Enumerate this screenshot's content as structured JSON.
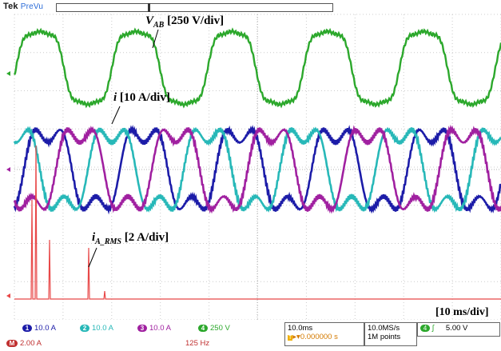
{
  "header": {
    "brand": "Tek",
    "mode": "PreVu"
  },
  "labels": {
    "vab_sym": "V",
    "vab_sub": "AB",
    "vab_scale": " [250 V/div]",
    "i_sym": "i",
    "i_scale": " [10 A/div]",
    "irms_sym": "i",
    "irms_sub": "A_RMS",
    "irms_scale": " [2 A/div]",
    "timebase": "[10 ms/div]"
  },
  "footer": {
    "ch1": {
      "num": "1",
      "value": "10.0 A"
    },
    "ch2": {
      "num": "2",
      "value": "10.0 A"
    },
    "ch3": {
      "num": "3",
      "value": "10.0 A"
    },
    "ch4": {
      "num": "4",
      "value": "250 V"
    },
    "math": {
      "num": "M",
      "value": "2.00 A",
      "freq": "125 Hz"
    },
    "horiz": {
      "scale": "10.0ms",
      "offset": "0.000000 s"
    },
    "acq": {
      "rate": "10.0MS/s",
      "points": "1M points"
    },
    "trig": {
      "num": "4",
      "level": "5.00 V"
    }
  },
  "colors": {
    "ch1": "#1c1ca8",
    "ch2": "#27b8b8",
    "ch3": "#a020a0",
    "ch4": "#2ca82c",
    "math": "#e84848",
    "grid": "#c8c8c8"
  }
}
